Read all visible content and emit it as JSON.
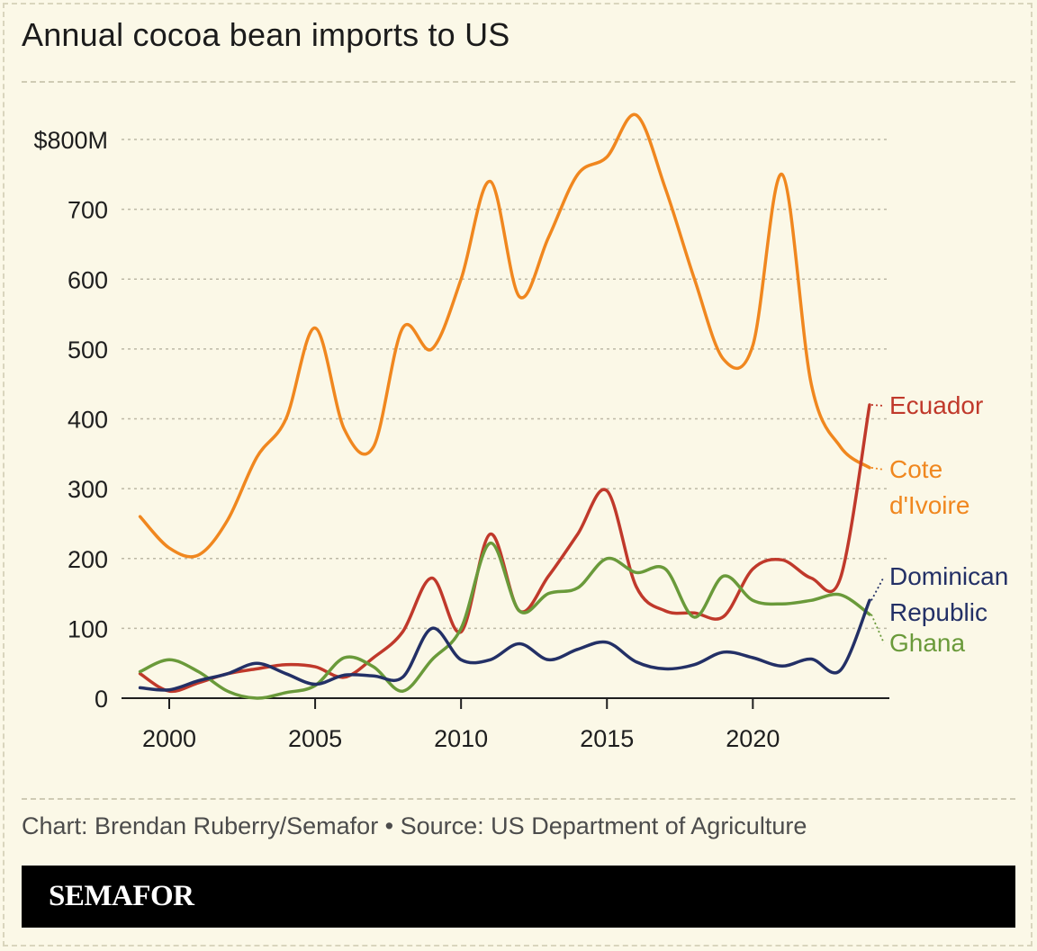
{
  "header": {
    "title": "Annual cocoa bean imports to US"
  },
  "footer": {
    "credit": "Chart: Brendan Ruberry/Semafor • Source: US Department of Agriculture"
  },
  "brand": {
    "name": "SEMAFOR"
  },
  "chart_data": {
    "type": "line",
    "title": "Annual cocoa bean imports to US",
    "xlabel": "",
    "ylabel": "",
    "xlim": [
      1999,
      2024
    ],
    "ylim": [
      0,
      800
    ],
    "x_ticks": [
      2000,
      2005,
      2010,
      2015,
      2020
    ],
    "x_tick_labels": [
      "2000",
      "2005",
      "2010",
      "2015",
      "2020"
    ],
    "y_ticks": [
      0,
      100,
      200,
      300,
      400,
      500,
      600,
      700,
      800
    ],
    "y_tick_labels": [
      "0",
      "100",
      "200",
      "300",
      "400",
      "500",
      "600",
      "700",
      "$800M"
    ],
    "grid": true,
    "x": [
      1999,
      2000,
      2001,
      2002,
      2003,
      2004,
      2005,
      2006,
      2007,
      2008,
      2009,
      2010,
      2011,
      2012,
      2013,
      2014,
      2015,
      2016,
      2017,
      2018,
      2019,
      2020,
      2021,
      2022,
      2023,
      2024
    ],
    "series": [
      {
        "name": "Cote d'Ivoire",
        "label_lines": [
          "Cote",
          "d'Ivoire"
        ],
        "color": "#f0871f",
        "values": [
          260,
          215,
          205,
          255,
          345,
          400,
          530,
          385,
          360,
          530,
          500,
          600,
          740,
          575,
          660,
          750,
          775,
          835,
          730,
          600,
          485,
          505,
          750,
          450,
          360,
          330
        ]
      },
      {
        "name": "Ecuador",
        "label_lines": [
          "Ecuador"
        ],
        "color": "#c0392b",
        "values": [
          35,
          10,
          22,
          35,
          42,
          48,
          45,
          30,
          58,
          95,
          172,
          95,
          235,
          125,
          175,
          235,
          297,
          160,
          125,
          122,
          117,
          185,
          198,
          172,
          172,
          420
        ]
      },
      {
        "name": "Ghana",
        "label_lines": [
          "Ghana"
        ],
        "color": "#6a9a3a",
        "values": [
          38,
          55,
          38,
          10,
          0,
          8,
          18,
          58,
          45,
          10,
          55,
          100,
          222,
          125,
          150,
          158,
          200,
          180,
          185,
          116,
          175,
          140,
          135,
          140,
          148,
          120
        ]
      },
      {
        "name": "Dominican Republic",
        "label_lines": [
          "Dominican",
          "Republic"
        ],
        "color": "#233066",
        "values": [
          15,
          12,
          25,
          35,
          50,
          35,
          20,
          33,
          32,
          30,
          100,
          55,
          55,
          78,
          55,
          70,
          80,
          52,
          42,
          48,
          66,
          58,
          46,
          56,
          40,
          140
        ]
      }
    ]
  }
}
